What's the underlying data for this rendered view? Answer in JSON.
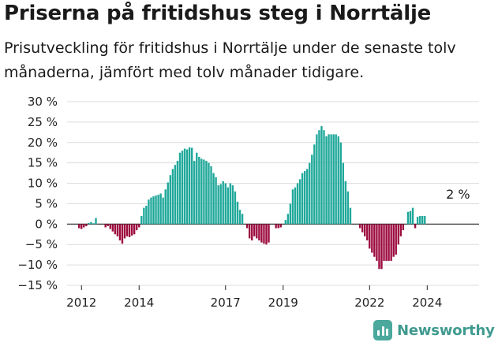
{
  "header": {
    "title": "Priserna på fritidshus steg i Norrtälje",
    "subtitle": "Prisutveckling för fritidshus i Norrtälje under de senaste tolv månaderna, jämfört med tolv månader tidigare."
  },
  "brand": {
    "name": "Newsworthy",
    "icon": "newsworthy-logo-icon",
    "color": "#4aa89c"
  },
  "chart_data": {
    "type": "bar",
    "title": "",
    "xlabel": "",
    "ylabel": "",
    "ylim": [
      -15,
      30
    ],
    "y_ticks": [
      30,
      25,
      20,
      15,
      10,
      5,
      0,
      -5,
      -10,
      -15
    ],
    "y_tick_labels": [
      "30 %",
      "25 %",
      "20 %",
      "15 %",
      "10 %",
      "5 %",
      "0 %",
      "−5 %",
      "−10 %",
      "−15 %"
    ],
    "x_tick_labels": [
      "2012",
      "2014",
      "2017",
      "2019",
      "2022",
      "2024"
    ],
    "x_tick_years": [
      2012,
      2014,
      2017,
      2019,
      2022,
      2024
    ],
    "grid": true,
    "colors": {
      "positive": "#1fa89a",
      "negative": "#9c0a3e"
    },
    "annotation": {
      "text": "2 %",
      "year": 2025.07,
      "value": 2
    },
    "start": "2011-10",
    "frequency": "monthly",
    "values": [
      0,
      0,
      -1,
      -1.2,
      -0.8,
      -0.5,
      0.3,
      0.5,
      0.2,
      1.5,
      0,
      0,
      0,
      -0.8,
      -0.5,
      -1.2,
      -1.8,
      -2.5,
      -3,
      -4,
      -4.8,
      -3.5,
      -3,
      -3.2,
      -2.8,
      -2.5,
      -1.5,
      -0.8,
      2,
      4,
      4.5,
      6,
      6.5,
      6.8,
      7,
      7.2,
      7.5,
      6.5,
      8.5,
      10.2,
      12,
      13.5,
      14.5,
      15.5,
      17.5,
      18,
      18.5,
      18.3,
      18.8,
      18.7,
      15.5,
      17.5,
      16.5,
      16,
      15.8,
      15.5,
      15,
      14.2,
      12.5,
      11.5,
      9.5,
      9.8,
      10.5,
      10,
      9,
      10,
      9.5,
      8,
      5.5,
      3.5,
      2.5,
      0,
      -1,
      -3.5,
      -4,
      -3,
      -3.5,
      -4,
      -4.5,
      -4.8,
      -5,
      -4.5,
      0,
      0,
      -1,
      -1,
      -0.8,
      0,
      1,
      2.5,
      5,
      8.5,
      9,
      10,
      11,
      12.5,
      13,
      13.5,
      15,
      17,
      19.5,
      22,
      23,
      24,
      23,
      21.5,
      22,
      22,
      22,
      22,
      21.5,
      20,
      15,
      10.5,
      8,
      4,
      0,
      0,
      0,
      -1,
      -2,
      -3,
      -4,
      -6,
      -7,
      -8,
      -9,
      -11,
      -11,
      -9,
      -9,
      -9,
      -9,
      -8,
      -7.5,
      -5,
      -3,
      -1.5,
      0,
      3,
      3.2,
      4,
      -1,
      1.8,
      2,
      2,
      2
    ]
  }
}
